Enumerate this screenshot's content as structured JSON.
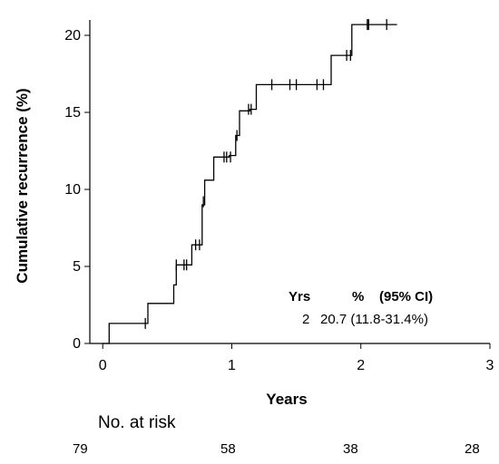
{
  "chart_data": {
    "type": "line",
    "title": "",
    "ylabel": "Cumulative recurrence (%)",
    "xlabel": "Years",
    "xlim": [
      -0.1,
      3
    ],
    "ylim": [
      0,
      21
    ],
    "x_ticks": [
      0,
      1,
      2,
      3
    ],
    "y_ticks": [
      0,
      5,
      10,
      15,
      20
    ],
    "step_curve": [
      [
        0.0,
        0.0
      ],
      [
        0.05,
        0.0
      ],
      [
        0.05,
        1.3
      ],
      [
        0.35,
        1.3
      ],
      [
        0.35,
        2.6
      ],
      [
        0.55,
        2.6
      ],
      [
        0.55,
        3.8
      ],
      [
        0.57,
        3.8
      ],
      [
        0.57,
        5.1
      ],
      [
        0.69,
        5.1
      ],
      [
        0.69,
        6.4
      ],
      [
        0.77,
        6.4
      ],
      [
        0.77,
        9.0
      ],
      [
        0.79,
        9.0
      ],
      [
        0.79,
        10.6
      ],
      [
        0.86,
        10.6
      ],
      [
        0.86,
        12.1
      ],
      [
        0.98,
        12.1
      ],
      [
        0.98,
        12.2
      ],
      [
        1.03,
        12.2
      ],
      [
        1.03,
        13.5
      ],
      [
        1.06,
        13.5
      ],
      [
        1.06,
        15.1
      ],
      [
        1.14,
        15.1
      ],
      [
        1.14,
        15.2
      ],
      [
        1.19,
        15.2
      ],
      [
        1.19,
        16.8
      ],
      [
        1.77,
        16.8
      ],
      [
        1.77,
        18.7
      ],
      [
        1.93,
        18.7
      ],
      [
        1.93,
        20.7
      ],
      [
        2.28,
        20.7
      ]
    ],
    "censor_marks": [
      [
        0.33,
        1.3
      ],
      [
        0.57,
        5.1
      ],
      [
        0.63,
        5.1
      ],
      [
        0.65,
        5.1
      ],
      [
        0.72,
        6.4
      ],
      [
        0.75,
        6.4
      ],
      [
        0.78,
        9.2
      ],
      [
        0.94,
        12.1
      ],
      [
        0.96,
        12.1
      ],
      [
        0.99,
        12.1
      ],
      [
        1.04,
        13.5
      ],
      [
        1.13,
        15.2
      ],
      [
        1.15,
        15.2
      ],
      [
        1.31,
        16.8
      ],
      [
        1.45,
        16.8
      ],
      [
        1.5,
        16.8
      ],
      [
        1.66,
        16.8
      ],
      [
        1.71,
        16.8
      ],
      [
        1.89,
        18.7
      ],
      [
        1.92,
        18.7
      ],
      [
        2.05,
        20.7
      ],
      [
        2.06,
        20.7
      ],
      [
        2.2,
        20.7
      ]
    ],
    "annotation": {
      "header_yrs": "Yrs",
      "header_pct": "%",
      "header_ci": "(95% CI)",
      "row_yrs": "2",
      "row_value": "20.7 (11.8-31.4%)"
    }
  },
  "risk_table": {
    "title": "No. at risk",
    "values": [
      "79",
      "58",
      "38",
      "28"
    ]
  }
}
